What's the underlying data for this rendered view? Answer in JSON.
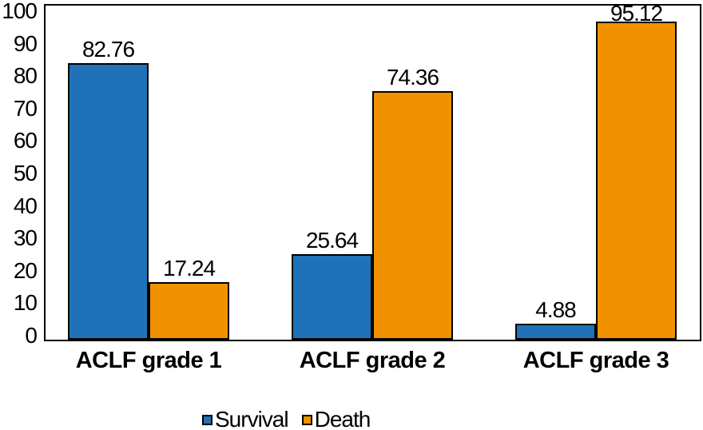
{
  "chart_data": {
    "type": "bar",
    "title": "",
    "xlabel": "",
    "ylabel": "",
    "categories": [
      "ACLF grade 1",
      "ACLF grade 2",
      "ACLF grade 3"
    ],
    "series": [
      {
        "name": "Survival",
        "color": "#1F72B7",
        "values": [
          82.76,
          25.64,
          4.88
        ]
      },
      {
        "name": "Death",
        "color": "#F09200",
        "values": [
          17.24,
          74.36,
          95.12
        ]
      }
    ],
    "value_labels": [
      [
        "82.76",
        "17.24"
      ],
      [
        "25.64",
        "74.36"
      ],
      [
        "4.88",
        "95.12"
      ]
    ],
    "ylim": [
      0,
      100
    ],
    "yticks": [
      "0",
      "10",
      "20",
      "30",
      "40",
      "50",
      "60",
      "70",
      "80",
      "90",
      "100"
    ],
    "grid": false,
    "legend_position": "bottom",
    "bar_outline_color": "#000000",
    "axis_color": "#000000",
    "background_color": "#FFFFFF"
  }
}
